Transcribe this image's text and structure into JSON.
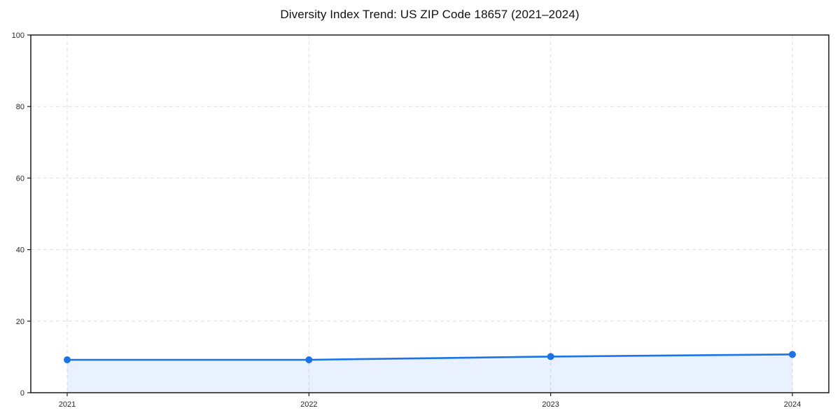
{
  "chart_data": {
    "type": "line",
    "title": "Diversity Index Trend: US ZIP Code 18657 (2021–2024)",
    "x": [
      2021,
      2022,
      2023,
      2024
    ],
    "xticklabels": [
      "2021",
      "2022",
      "2023",
      "2024"
    ],
    "values": [
      9.2,
      9.2,
      10.1,
      10.7
    ],
    "ylim": [
      0,
      100
    ],
    "yticks": [
      0,
      20,
      40,
      60,
      80,
      100
    ],
    "yticklabels": [
      "0",
      "20",
      "40",
      "60",
      "80",
      "100"
    ],
    "grid": "dashed",
    "legend": "none",
    "xlabel": "",
    "ylabel": "",
    "area": true,
    "marker": "circle",
    "colors": {
      "line": "#1a73e8",
      "marker": "#1a73e8",
      "area_fill": "rgba(26,115,232,0.10)",
      "grid": "#dedede",
      "spine": "#1a1a1a",
      "tick_label": "#262626",
      "title": "#111111",
      "background": "#ffffff"
    }
  }
}
